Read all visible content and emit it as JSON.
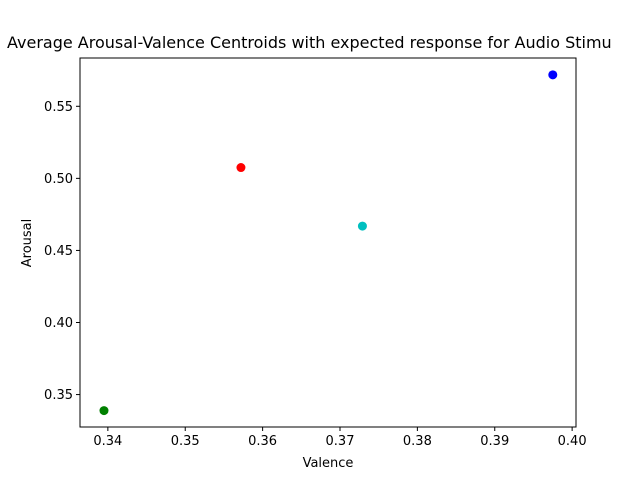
{
  "chart_data": {
    "type": "scatter",
    "title": "Average Arousal-Valence Centroids with expected response for Audio Stimu",
    "xlabel": "Valence",
    "ylabel": "Arousal",
    "xlim": [
      0.3364,
      0.4005
    ],
    "ylim": [
      0.3275,
      0.5835
    ],
    "xticks": [
      "0.34",
      "0.35",
      "0.36",
      "0.37",
      "0.38",
      "0.39",
      "0.40"
    ],
    "yticks": [
      "0.35",
      "0.40",
      "0.45",
      "0.50",
      "0.55"
    ],
    "grid": false,
    "points": [
      {
        "x": 0.3572,
        "y": 0.5075,
        "color": "#ff0000"
      },
      {
        "x": 0.3975,
        "y": 0.5718,
        "color": "#0000ff"
      },
      {
        "x": 0.3729,
        "y": 0.4669,
        "color": "#00bfbf"
      },
      {
        "x": 0.3395,
        "y": 0.3389,
        "color": "#008000"
      }
    ]
  }
}
